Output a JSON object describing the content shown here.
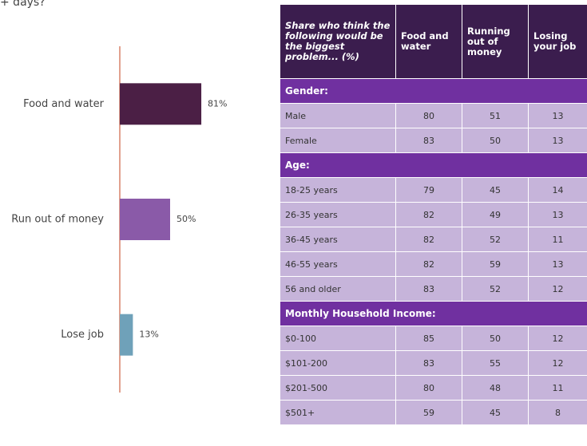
{
  "heading": "+ days?",
  "chart_data": {
    "type": "bar",
    "orientation": "horizontal",
    "categories": [
      "Food and water",
      "Run out of money",
      "Lose job"
    ],
    "values": [
      81,
      50,
      13
    ],
    "value_labels": [
      "81%",
      "50%",
      "13%"
    ],
    "colors": [
      "#4b1f45",
      "#8a5aa8",
      "#6fa1b9"
    ],
    "axis_color": "#d9826a"
  },
  "table": {
    "header": [
      "Share who think the following would be the biggest problem... (%)",
      "Food and water",
      "Running out of money",
      "Losing your job"
    ],
    "sections": [
      {
        "title": "Gender:",
        "rows": [
          [
            "Male",
            80,
            51,
            13
          ],
          [
            "Female",
            83,
            50,
            13
          ]
        ]
      },
      {
        "title": "Age:",
        "rows": [
          [
            "18-25 years",
            79,
            45,
            14
          ],
          [
            "26-35 years",
            82,
            49,
            13
          ],
          [
            "36-45 years",
            82,
            52,
            11
          ],
          [
            "46-55 years",
            82,
            59,
            13
          ],
          [
            "56 and older",
            83,
            52,
            12
          ]
        ]
      },
      {
        "title": "Monthly Household Income:",
        "rows": [
          [
            "$0-100",
            85,
            50,
            12
          ],
          [
            "$101-200",
            83,
            55,
            12
          ],
          [
            "$201-500",
            80,
            48,
            11
          ],
          [
            "$501+",
            59,
            45,
            8
          ]
        ]
      }
    ]
  }
}
